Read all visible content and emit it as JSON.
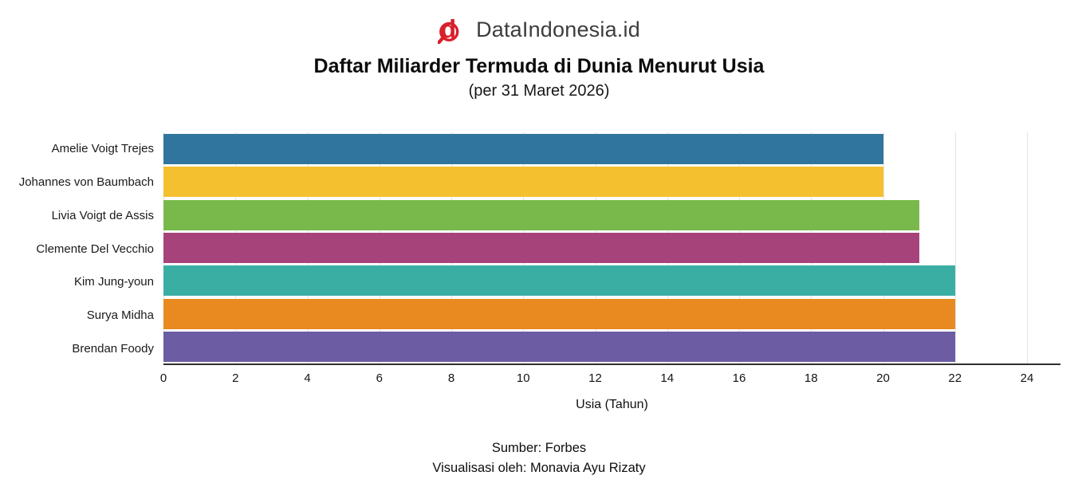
{
  "header": {
    "brand": "DataIndonesia.id",
    "logo_letter": "d",
    "logo_icon": "magnifier-d-icon",
    "logo_color": "#d91f2b",
    "title": "Daftar Miliarder Termuda di Dunia Menurut Usia",
    "subtitle": "(per 31 Maret 2026)"
  },
  "chart_data": {
    "type": "bar",
    "orientation": "horizontal",
    "title": "Daftar Miliarder Termuda di Dunia Menurut Usia",
    "subtitle": "(per 31 Maret 2026)",
    "categories": [
      "Amelie Voigt Trejes",
      "Johannes von Baumbach",
      "Livia Voigt de Assis",
      "Clemente Del Vecchio",
      "Kim Jung-youn",
      "Surya Midha",
      "Brendan Foody"
    ],
    "values": [
      20,
      20,
      21,
      21,
      22,
      22,
      22
    ],
    "bar_colors": [
      "#30759E",
      "#F4C030",
      "#79B94C",
      "#A7437B",
      "#3BAEA3",
      "#E88A1F",
      "#6C5CA4"
    ],
    "xlabel": "Usia (Tahun)",
    "ylabel": "",
    "xlim": [
      0,
      24
    ],
    "xticks": [
      0,
      2,
      4,
      6,
      8,
      10,
      12,
      14,
      16,
      18,
      20,
      22,
      24
    ],
    "grid": true,
    "gridline_color": "#e4e4e4",
    "axis_line_color": "#2e2e2e",
    "legend": false
  },
  "footer": {
    "source": "Sumber: Forbes",
    "credit": "Visualisasi oleh: Monavia Ayu Rizaty"
  }
}
